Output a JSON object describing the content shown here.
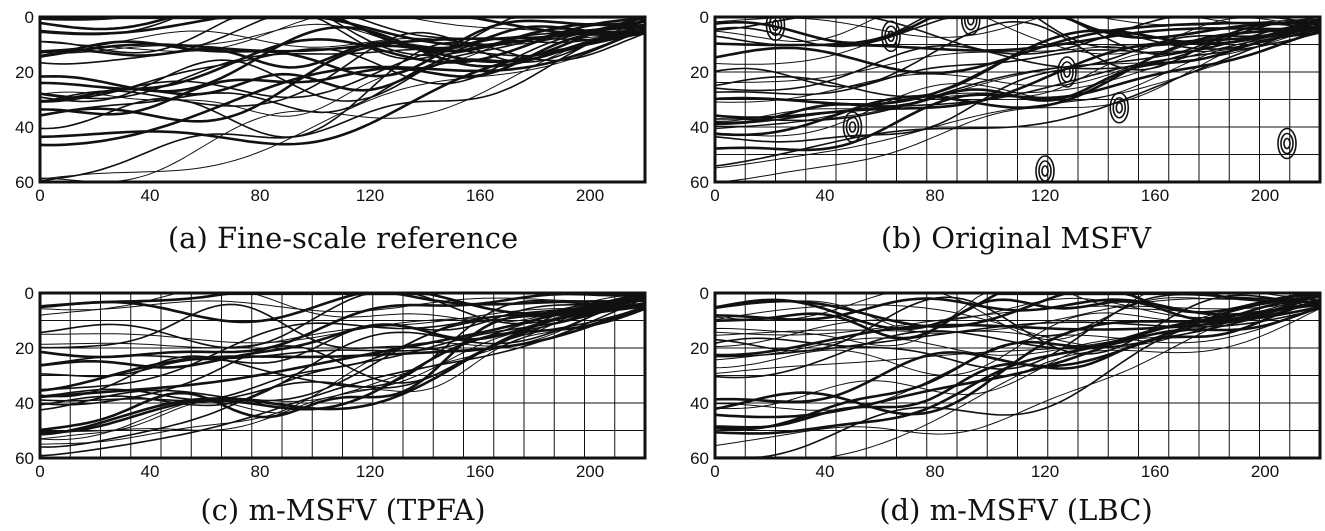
{
  "figure": {
    "panels": [
      {
        "id": "a",
        "caption": "(a) Fine-scale reference",
        "grid": false,
        "seed": 11
      },
      {
        "id": "b",
        "caption": "(b) Original MSFV",
        "grid": true,
        "seed": 23
      },
      {
        "id": "c",
        "caption": "(c) m-MSFV (TPFA)",
        "grid": true,
        "seed": 37
      },
      {
        "id": "d",
        "caption": "(d) m-MSFV (LBC)",
        "grid": true,
        "seed": 53
      }
    ],
    "axes": {
      "x_ticks": [
        "0",
        "40",
        "80",
        "120",
        "160",
        "200"
      ],
      "y_ticks": [
        "0",
        "20",
        "40",
        "60"
      ],
      "x_values": [
        0,
        40,
        80,
        120,
        160,
        200
      ],
      "y_values": [
        0,
        20,
        40,
        60
      ],
      "xlim": [
        0,
        220
      ],
      "ylim": [
        0,
        60
      ]
    },
    "line_color": "#111111"
  }
}
